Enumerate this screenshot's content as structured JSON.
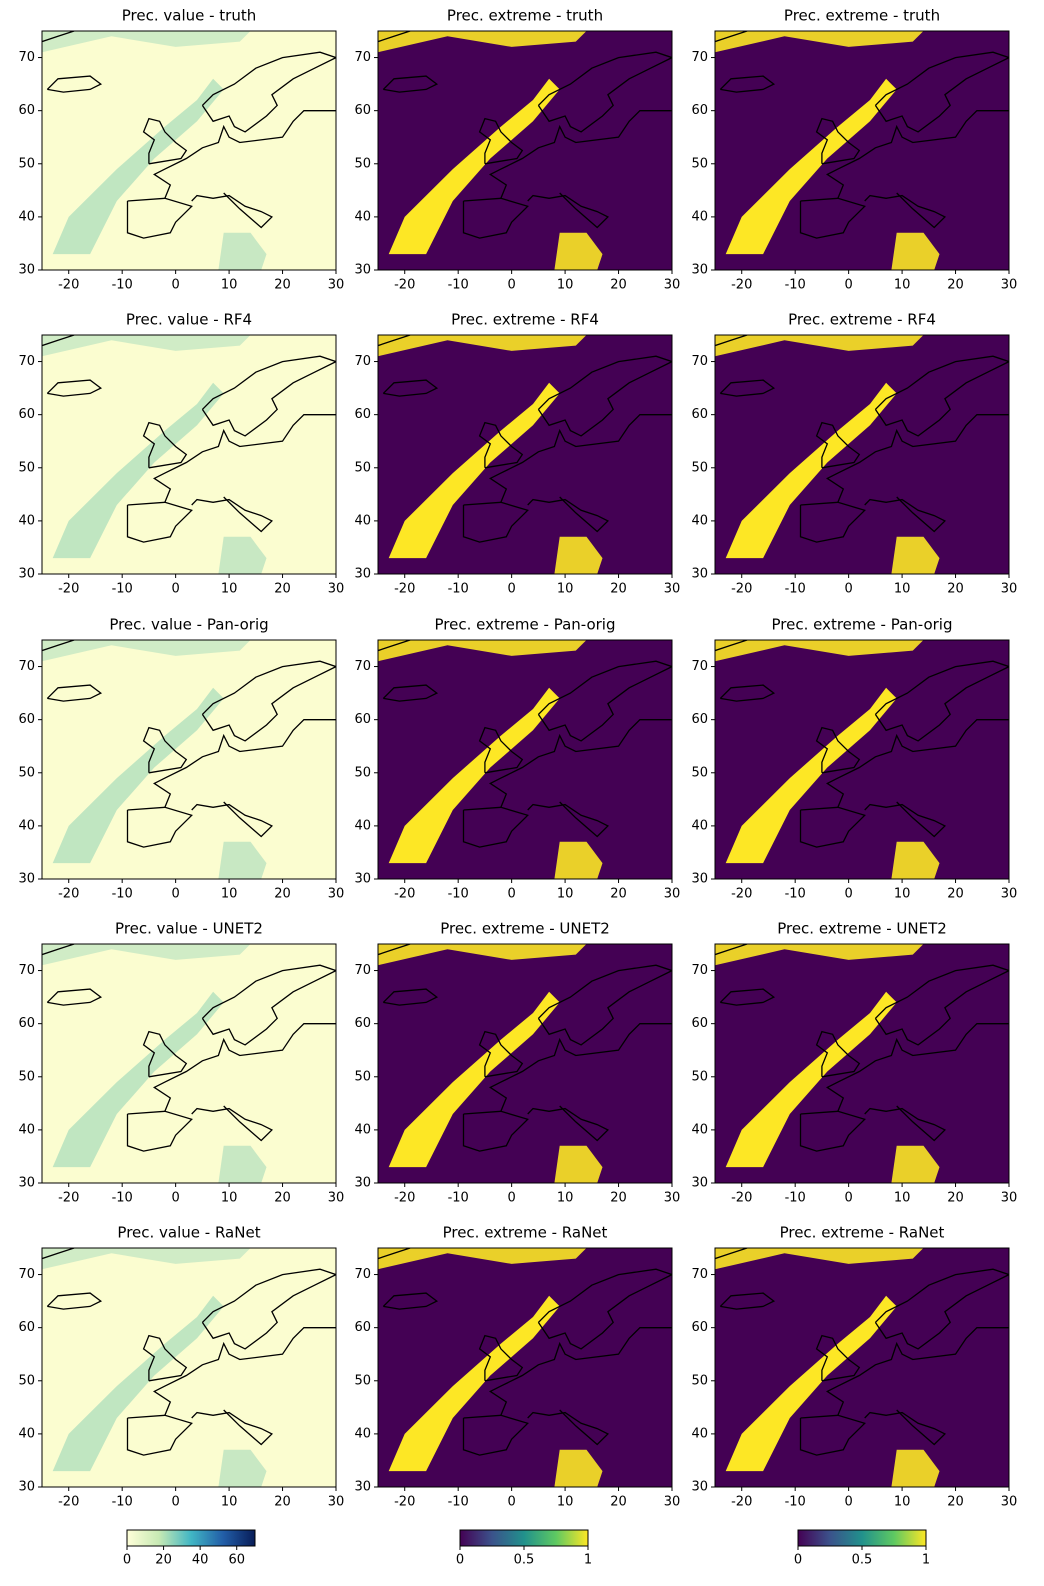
{
  "chart_data": [
    {
      "type": "map",
      "title": "Prec. value - truth",
      "colormap": "YlGnBu",
      "xlim": [
        -25,
        30
      ],
      "ylim": [
        30,
        75
      ],
      "xticks": [
        -20,
        -10,
        0,
        10,
        20,
        30
      ],
      "yticks": [
        30,
        40,
        50,
        60,
        70
      ]
    },
    {
      "type": "map",
      "title": "Prec. extreme - truth",
      "colormap": "viridis",
      "xlim": [
        -25,
        30
      ],
      "ylim": [
        30,
        75
      ],
      "xticks": [
        -20,
        -10,
        0,
        10,
        20,
        30
      ],
      "yticks": [
        30,
        40,
        50,
        60,
        70
      ]
    },
    {
      "type": "map",
      "title": "Prec. extreme - truth",
      "colormap": "viridis",
      "xlim": [
        -25,
        30
      ],
      "ylim": [
        30,
        75
      ],
      "xticks": [
        -20,
        -10,
        0,
        10,
        20,
        30
      ],
      "yticks": [
        30,
        40,
        50,
        60,
        70
      ]
    },
    {
      "type": "map",
      "title": "Prec. value - RF4",
      "colormap": "YlGnBu",
      "xlim": [
        -25,
        30
      ],
      "ylim": [
        30,
        75
      ],
      "xticks": [
        -20,
        -10,
        0,
        10,
        20,
        30
      ],
      "yticks": [
        30,
        40,
        50,
        60,
        70
      ]
    },
    {
      "type": "map",
      "title": "Prec. extreme - RF4",
      "colormap": "viridis",
      "xlim": [
        -25,
        30
      ],
      "ylim": [
        30,
        75
      ],
      "xticks": [
        -20,
        -10,
        0,
        10,
        20,
        30
      ],
      "yticks": [
        30,
        40,
        50,
        60,
        70
      ]
    },
    {
      "type": "map",
      "title": "Prec. extreme - RF4",
      "colormap": "viridis",
      "xlim": [
        -25,
        30
      ],
      "ylim": [
        30,
        75
      ],
      "xticks": [
        -20,
        -10,
        0,
        10,
        20,
        30
      ],
      "yticks": [
        30,
        40,
        50,
        60,
        70
      ]
    },
    {
      "type": "map",
      "title": "Prec. value - Pan-orig",
      "colormap": "YlGnBu",
      "xlim": [
        -25,
        30
      ],
      "ylim": [
        30,
        75
      ],
      "xticks": [
        -20,
        -10,
        0,
        10,
        20,
        30
      ],
      "yticks": [
        30,
        40,
        50,
        60,
        70
      ]
    },
    {
      "type": "map",
      "title": "Prec. extreme - Pan-orig",
      "colormap": "viridis",
      "xlim": [
        -25,
        30
      ],
      "ylim": [
        30,
        75
      ],
      "xticks": [
        -20,
        -10,
        0,
        10,
        20,
        30
      ],
      "yticks": [
        30,
        40,
        50,
        60,
        70
      ]
    },
    {
      "type": "map",
      "title": "Prec. extreme - Pan-orig",
      "colormap": "viridis",
      "xlim": [
        -25,
        30
      ],
      "ylim": [
        30,
        75
      ],
      "xticks": [
        -20,
        -10,
        0,
        10,
        20,
        30
      ],
      "yticks": [
        30,
        40,
        50,
        60,
        70
      ]
    },
    {
      "type": "map",
      "title": "Prec. value - UNET2",
      "colormap": "YlGnBu",
      "xlim": [
        -25,
        30
      ],
      "ylim": [
        30,
        75
      ],
      "xticks": [
        -20,
        -10,
        0,
        10,
        20,
        30
      ],
      "yticks": [
        30,
        40,
        50,
        60,
        70
      ]
    },
    {
      "type": "map",
      "title": "Prec. extreme - UNET2",
      "colormap": "viridis",
      "xlim": [
        -25,
        30
      ],
      "ylim": [
        30,
        75
      ],
      "xticks": [
        -20,
        -10,
        0,
        10,
        20,
        30
      ],
      "yticks": [
        30,
        40,
        50,
        60,
        70
      ]
    },
    {
      "type": "map",
      "title": "Prec. extreme - UNET2",
      "colormap": "viridis",
      "xlim": [
        -25,
        30
      ],
      "ylim": [
        30,
        75
      ],
      "xticks": [
        -20,
        -10,
        0,
        10,
        20,
        30
      ],
      "yticks": [
        30,
        40,
        50,
        60,
        70
      ]
    },
    {
      "type": "map",
      "title": "Prec. value - RaNet",
      "colormap": "YlGnBu",
      "xlim": [
        -25,
        30
      ],
      "ylim": [
        30,
        75
      ],
      "xticks": [
        -20,
        -10,
        0,
        10,
        20,
        30
      ],
      "yticks": [
        30,
        40,
        50,
        60,
        70
      ]
    },
    {
      "type": "map",
      "title": "Prec. extreme - RaNet",
      "colormap": "viridis",
      "xlim": [
        -25,
        30
      ],
      "ylim": [
        30,
        75
      ],
      "xticks": [
        -20,
        -10,
        0,
        10,
        20,
        30
      ],
      "yticks": [
        30,
        40,
        50,
        60,
        70
      ]
    },
    {
      "type": "map",
      "title": "Prec. extreme - RaNet",
      "colormap": "viridis",
      "xlim": [
        -25,
        30
      ],
      "ylim": [
        30,
        75
      ],
      "xticks": [
        -20,
        -10,
        0,
        10,
        20,
        30
      ],
      "yticks": [
        30,
        40,
        50,
        60,
        70
      ]
    },
    {
      "type": "colorbar",
      "colormap": "YlGnBu",
      "xlim": [
        0,
        70
      ],
      "xticks": [
        0,
        20,
        40,
        60
      ]
    },
    {
      "type": "colorbar",
      "colormap": "viridis",
      "xlim": [
        0,
        1
      ],
      "xticks": [
        0,
        0.5,
        1
      ]
    },
    {
      "type": "colorbar",
      "colormap": "viridis",
      "xlim": [
        0,
        1
      ],
      "xticks": [
        0,
        0.5,
        1
      ]
    }
  ]
}
